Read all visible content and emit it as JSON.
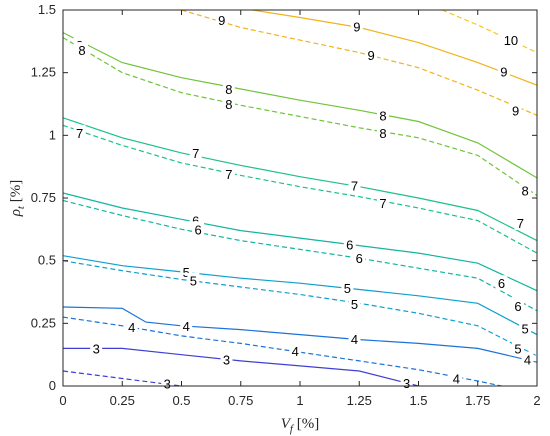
{
  "chart_data": {
    "type": "line",
    "title": "",
    "xlabel": {
      "symbol": "V",
      "subscript": "f",
      "unit": " [%]"
    },
    "ylabel": {
      "symbol": "ρ",
      "subscript": "t",
      "unit": " [%]"
    },
    "xlim": [
      0,
      2
    ],
    "ylim": [
      0,
      1.5
    ],
    "xticks": [
      0,
      0.25,
      0.5,
      0.75,
      1,
      1.25,
      1.5,
      1.75,
      2
    ],
    "xtick_labels": [
      "0",
      "0.25",
      "0.5",
      "0.75",
      "1",
      "1.25",
      "1.5",
      "1.75",
      "2"
    ],
    "yticks": [
      0,
      0.25,
      0.5,
      0.75,
      1,
      1.25,
      1.5
    ],
    "ytick_labels": [
      "0",
      "0.25",
      "0.5",
      "0.75",
      "1",
      "1.25",
      "1.5"
    ],
    "grid": false,
    "legend": "none",
    "series": [
      {
        "level": "3",
        "style": "solid",
        "color": "#3f3fd6",
        "points": [
          [
            0,
            0.15
          ],
          [
            0.25,
            0.15
          ],
          [
            0.5,
            0.125
          ],
          [
            0.75,
            0.1
          ],
          [
            1,
            0.08
          ],
          [
            1.25,
            0.06
          ],
          [
            1.5,
            0.0
          ]
        ],
        "labels": [
          {
            "text": "3",
            "x": 0.14,
            "y": 0.15
          },
          {
            "text": "3",
            "x": 0.69,
            "y": 0.105
          },
          {
            "text": "3",
            "x": 1.45,
            "y": 0.012
          }
        ]
      },
      {
        "level": "3",
        "style": "dashed",
        "color": "#3f3fd6",
        "points": [
          [
            0,
            0.06
          ],
          [
            0.25,
            0.03
          ],
          [
            0.5,
            0.0
          ]
        ],
        "labels": [
          {
            "text": "3",
            "x": 0.44,
            "y": 0.01
          }
        ]
      },
      {
        "level": "4",
        "style": "solid",
        "color": "#1a73d9",
        "points": [
          [
            0,
            0.315
          ],
          [
            0.25,
            0.31
          ],
          [
            0.35,
            0.255
          ],
          [
            0.5,
            0.24
          ],
          [
            0.75,
            0.225
          ],
          [
            1,
            0.205
          ],
          [
            1.25,
            0.185
          ],
          [
            1.5,
            0.17
          ],
          [
            1.75,
            0.15
          ],
          [
            2,
            0.095
          ]
        ],
        "labels": [
          {
            "text": "4",
            "x": 0.52,
            "y": 0.24
          },
          {
            "text": "4",
            "x": 1.23,
            "y": 0.187
          },
          {
            "text": "4",
            "x": 1.96,
            "y": 0.105
          }
        ]
      },
      {
        "level": "4",
        "style": "dashed",
        "color": "#1a73d9",
        "points": [
          [
            0,
            0.275
          ],
          [
            0.25,
            0.24
          ],
          [
            0.5,
            0.2
          ],
          [
            0.75,
            0.17
          ],
          [
            1,
            0.135
          ],
          [
            1.25,
            0.1
          ],
          [
            1.5,
            0.065
          ],
          [
            1.75,
            0.02
          ],
          [
            1.85,
            0.0
          ]
        ],
        "labels": [
          {
            "text": "4",
            "x": 0.29,
            "y": 0.235
          },
          {
            "text": "4",
            "x": 0.98,
            "y": 0.14
          },
          {
            "text": "4",
            "x": 1.66,
            "y": 0.03
          }
        ]
      },
      {
        "level": "5",
        "style": "solid",
        "color": "#0e9fcf",
        "points": [
          [
            0,
            0.52
          ],
          [
            0.25,
            0.48
          ],
          [
            0.5,
            0.455
          ],
          [
            0.75,
            0.43
          ],
          [
            1,
            0.41
          ],
          [
            1.25,
            0.385
          ],
          [
            1.5,
            0.36
          ],
          [
            1.75,
            0.33
          ],
          [
            2,
            0.205
          ]
        ],
        "labels": [
          {
            "text": "5",
            "x": 0.52,
            "y": 0.455
          },
          {
            "text": "5",
            "x": 1.2,
            "y": 0.39
          },
          {
            "text": "5",
            "x": 1.95,
            "y": 0.23
          }
        ]
      },
      {
        "level": "5",
        "style": "dashed",
        "color": "#0e9fcf",
        "points": [
          [
            0,
            0.5
          ],
          [
            0.25,
            0.46
          ],
          [
            0.5,
            0.425
          ],
          [
            0.75,
            0.395
          ],
          [
            1,
            0.365
          ],
          [
            1.25,
            0.33
          ],
          [
            1.5,
            0.29
          ],
          [
            1.75,
            0.24
          ],
          [
            2,
            0.12
          ]
        ],
        "labels": [
          {
            "text": "5",
            "x": 0.55,
            "y": 0.42
          },
          {
            "text": "5",
            "x": 1.23,
            "y": 0.328
          },
          {
            "text": "5",
            "x": 1.92,
            "y": 0.15
          }
        ]
      },
      {
        "level": "6",
        "style": "solid",
        "color": "#12b5a0",
        "points": [
          [
            0,
            0.77
          ],
          [
            0.25,
            0.71
          ],
          [
            0.5,
            0.665
          ],
          [
            0.75,
            0.62
          ],
          [
            1,
            0.59
          ],
          [
            1.25,
            0.56
          ],
          [
            1.5,
            0.53
          ],
          [
            1.75,
            0.49
          ],
          [
            2,
            0.38
          ]
        ],
        "labels": [
          {
            "text": "6",
            "x": 0.56,
            "y": 0.66
          },
          {
            "text": "6",
            "x": 1.21,
            "y": 0.565
          },
          {
            "text": "6",
            "x": 1.85,
            "y": 0.41
          }
        ]
      },
      {
        "level": "6",
        "style": "dashed",
        "color": "#12b5a0",
        "points": [
          [
            0,
            0.74
          ],
          [
            0.25,
            0.68
          ],
          [
            0.5,
            0.625
          ],
          [
            0.75,
            0.58
          ],
          [
            1,
            0.545
          ],
          [
            1.25,
            0.51
          ],
          [
            1.5,
            0.47
          ],
          [
            1.75,
            0.43
          ],
          [
            2,
            0.3
          ]
        ],
        "labels": [
          {
            "text": "6",
            "x": 0.57,
            "y": 0.625
          },
          {
            "text": "6",
            "x": 1.25,
            "y": 0.51
          },
          {
            "text": "6",
            "x": 1.92,
            "y": 0.32
          }
        ]
      },
      {
        "level": "7",
        "style": "solid",
        "color": "#1dc08a",
        "points": [
          [
            0,
            1.07
          ],
          [
            0.25,
            0.99
          ],
          [
            0.5,
            0.93
          ],
          [
            0.75,
            0.88
          ],
          [
            1,
            0.835
          ],
          [
            1.25,
            0.795
          ],
          [
            1.5,
            0.75
          ],
          [
            1.75,
            0.7
          ],
          [
            2,
            0.58
          ]
        ],
        "labels": [
          {
            "text": "7",
            "x": 0.56,
            "y": 0.93
          },
          {
            "text": "7",
            "x": 1.23,
            "y": 0.8
          },
          {
            "text": "7",
            "x": 1.93,
            "y": 0.65
          }
        ]
      },
      {
        "level": "7",
        "style": "dashed",
        "color": "#1dc08a",
        "points": [
          [
            0,
            1.04
          ],
          [
            0.25,
            0.96
          ],
          [
            0.5,
            0.89
          ],
          [
            0.75,
            0.84
          ],
          [
            1,
            0.795
          ],
          [
            1.25,
            0.755
          ],
          [
            1.5,
            0.71
          ],
          [
            1.75,
            0.66
          ],
          [
            2,
            0.53
          ]
        ],
        "labels": [
          {
            "text": "7",
            "x": 0.07,
            "y": 1.01
          },
          {
            "text": "7",
            "x": 0.7,
            "y": 0.845
          },
          {
            "text": "7",
            "x": 1.35,
            "y": 0.73
          }
        ]
      },
      {
        "level": "8",
        "style": "solid",
        "color": "#6fc43a",
        "points": [
          [
            0,
            1.41
          ],
          [
            0.25,
            1.29
          ],
          [
            0.5,
            1.23
          ],
          [
            0.75,
            1.185
          ],
          [
            1,
            1.14
          ],
          [
            1.25,
            1.1
          ],
          [
            1.5,
            1.055
          ],
          [
            1.75,
            0.97
          ],
          [
            2,
            0.83
          ]
        ],
        "labels": [
          {
            "text": "8",
            "x": 0.07,
            "y": 1.36
          },
          {
            "text": "8",
            "x": 0.7,
            "y": 1.185
          },
          {
            "text": "8",
            "x": 1.35,
            "y": 1.08
          }
        ]
      },
      {
        "level": "8",
        "style": "dashed",
        "color": "#6fc43a",
        "points": [
          [
            0,
            1.39
          ],
          [
            0.25,
            1.25
          ],
          [
            0.5,
            1.17
          ],
          [
            0.75,
            1.12
          ],
          [
            1,
            1.075
          ],
          [
            1.25,
            1.03
          ],
          [
            1.5,
            0.99
          ],
          [
            1.75,
            0.92
          ],
          [
            2,
            0.76
          ]
        ],
        "labels": [
          {
            "text": "8",
            "x": 0.08,
            "y": 1.34
          },
          {
            "text": "8",
            "x": 0.7,
            "y": 1.125
          },
          {
            "text": "8",
            "x": 1.35,
            "y": 1.01
          },
          {
            "text": "8",
            "x": 1.95,
            "y": 0.78
          }
        ]
      },
      {
        "level": "9",
        "style": "solid",
        "color": "#f0b41c",
        "points": [
          [
            0.8,
            1.5
          ],
          [
            1,
            1.47
          ],
          [
            1.25,
            1.43
          ],
          [
            1.5,
            1.37
          ],
          [
            1.75,
            1.29
          ],
          [
            2,
            1.2
          ]
        ],
        "labels": [
          {
            "text": "9",
            "x": 1.24,
            "y": 1.435
          },
          {
            "text": "9",
            "x": 1.86,
            "y": 1.255
          }
        ]
      },
      {
        "level": "9",
        "style": "dashed",
        "color": "#f0b41c",
        "points": [
          [
            0.5,
            1.5
          ],
          [
            0.75,
            1.43
          ],
          [
            1,
            1.38
          ],
          [
            1.25,
            1.33
          ],
          [
            1.5,
            1.27
          ],
          [
            1.75,
            1.18
          ],
          [
            2,
            1.08
          ]
        ],
        "labels": [
          {
            "text": "9",
            "x": 0.67,
            "y": 1.46
          },
          {
            "text": "9",
            "x": 1.3,
            "y": 1.32
          },
          {
            "text": "9",
            "x": 1.91,
            "y": 1.1
          }
        ]
      },
      {
        "level": "10",
        "style": "dashed",
        "color": "#f7c91e",
        "points": [
          [
            1.6,
            1.5
          ],
          [
            1.75,
            1.44
          ],
          [
            2,
            1.33
          ]
        ],
        "labels": [
          {
            "text": "10",
            "x": 1.89,
            "y": 1.38
          }
        ]
      }
    ]
  }
}
